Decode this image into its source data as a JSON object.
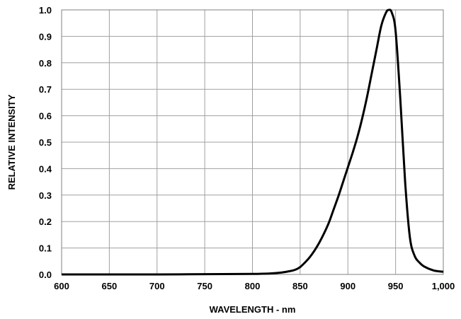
{
  "chart_data": {
    "type": "line",
    "title": "",
    "xlabel": "WAVELENGTH - nm",
    "ylabel": "RELATIVE INTENSITY",
    "xlim": [
      600,
      1000
    ],
    "ylim": [
      0,
      1.0
    ],
    "grid": true,
    "x_tick_labels": [
      "600",
      "650",
      "700",
      "750",
      "800",
      "850",
      "900",
      "950",
      "1,000"
    ],
    "y_tick_labels": [
      "0.0",
      "0.1",
      "0.2",
      "0.3",
      "0.4",
      "0.5",
      "0.6",
      "0.7",
      "0.8",
      "0.9",
      "1.0"
    ],
    "x_ticks": [
      600,
      650,
      700,
      750,
      800,
      850,
      900,
      950,
      1000
    ],
    "y_ticks": [
      0,
      0.1,
      0.2,
      0.3,
      0.4,
      0.5,
      0.6,
      0.7,
      0.8,
      0.9,
      1.0
    ],
    "line_color": "#000000",
    "grid_color": "#a0a0a0",
    "series": [
      {
        "x": [
          600,
          650,
          700,
          750,
          800,
          820,
          830,
          840,
          845,
          850,
          855,
          860,
          865,
          870,
          875,
          880,
          885,
          890,
          895,
          900,
          905,
          910,
          915,
          920,
          925,
          930,
          935,
          940,
          943,
          946,
          950,
          955,
          960,
          965,
          970,
          975,
          980,
          990,
          1000
        ],
        "y": [
          0,
          0,
          0,
          0.001,
          0.002,
          0.004,
          0.007,
          0.013,
          0.018,
          0.028,
          0.045,
          0.065,
          0.09,
          0.12,
          0.155,
          0.195,
          0.245,
          0.295,
          0.35,
          0.405,
          0.46,
          0.52,
          0.59,
          0.67,
          0.76,
          0.85,
          0.94,
          0.99,
          1.0,
          0.99,
          0.92,
          0.66,
          0.35,
          0.14,
          0.07,
          0.045,
          0.03,
          0.015,
          0.01
        ]
      }
    ]
  }
}
